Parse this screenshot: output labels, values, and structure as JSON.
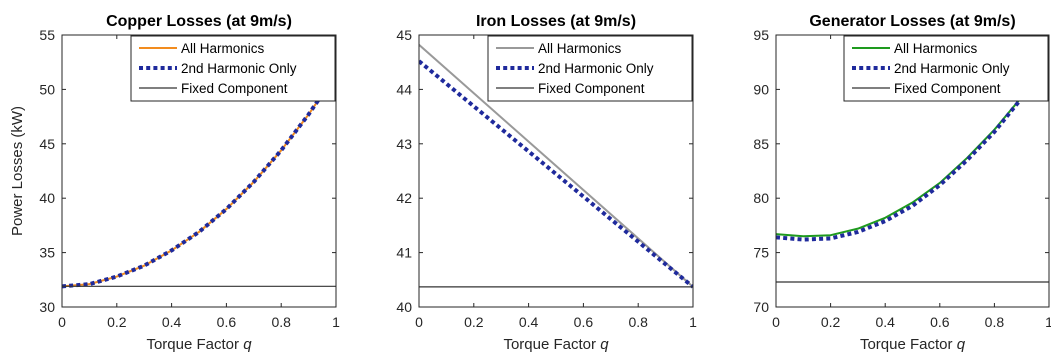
{
  "chart_data": [
    {
      "type": "line",
      "title": "Copper Losses (at 9m/s)",
      "xlabel": "Torque Factor",
      "xlabel_var": "q",
      "ylabel": "Power Losses (kW)",
      "xlim": [
        0,
        1
      ],
      "ylim": [
        30,
        55
      ],
      "xticks": [
        0,
        0.2,
        0.4,
        0.6,
        0.8,
        1
      ],
      "xtick_labels": [
        "0",
        "0.2",
        "0.4",
        "0.6",
        "0.8",
        "1"
      ],
      "yticks": [
        30,
        35,
        40,
        45,
        50,
        55
      ],
      "ytick_labels": [
        "30",
        "35",
        "40",
        "45",
        "50",
        "55"
      ],
      "grid": false,
      "legend_position": "top-right",
      "series": [
        {
          "name": "All Harmonics",
          "color": "#F28C1E",
          "style": "solid",
          "x": [
            0,
            0.1,
            0.2,
            0.3,
            0.4,
            0.5,
            0.6,
            0.7,
            0.8,
            0.9,
            1.0
          ],
          "y": [
            31.9,
            32.1,
            32.8,
            33.8,
            35.2,
            36.9,
            39.0,
            41.5,
            44.4,
            47.7,
            51.4
          ]
        },
        {
          "name": "2nd Harmonic Only",
          "color": "#1F2A9C",
          "style": "dotted",
          "x": [
            0,
            0.1,
            0.2,
            0.3,
            0.4,
            0.5,
            0.6,
            0.7,
            0.8,
            0.9,
            1.0
          ],
          "y": [
            31.9,
            32.1,
            32.8,
            33.8,
            35.2,
            36.9,
            39.0,
            41.5,
            44.4,
            47.7,
            51.4
          ]
        },
        {
          "name": "Fixed Component",
          "color": "#333333",
          "style": "thin",
          "x": [
            0,
            1
          ],
          "y": [
            31.9,
            31.9
          ]
        }
      ]
    },
    {
      "type": "line",
      "title": "Iron Losses (at 9m/s)",
      "xlabel": "Torque Factor",
      "xlabel_var": "q",
      "ylabel": "",
      "xlim": [
        0,
        1
      ],
      "ylim": [
        40,
        45
      ],
      "xticks": [
        0,
        0.2,
        0.4,
        0.6,
        0.8,
        1
      ],
      "xtick_labels": [
        "0",
        "0.2",
        "0.4",
        "0.6",
        "0.8",
        "1"
      ],
      "yticks": [
        40,
        41,
        42,
        43,
        44,
        45
      ],
      "ytick_labels": [
        "40",
        "41",
        "42",
        "43",
        "44",
        "45"
      ],
      "grid": false,
      "legend_position": "top-right",
      "series": [
        {
          "name": "All Harmonics",
          "color": "#999999",
          "style": "solid",
          "x": [
            0,
            1
          ],
          "y": [
            44.82,
            40.37
          ]
        },
        {
          "name": "2nd Harmonic Only",
          "color": "#1F2A9C",
          "style": "dotted",
          "x": [
            0,
            1
          ],
          "y": [
            44.52,
            40.37
          ]
        },
        {
          "name": "Fixed Component",
          "color": "#333333",
          "style": "thin",
          "x": [
            0,
            1
          ],
          "y": [
            40.37,
            40.37
          ]
        }
      ]
    },
    {
      "type": "line",
      "title": "Generator Losses (at 9m/s)",
      "xlabel": "Torque Factor",
      "xlabel_var": "q",
      "ylabel": "",
      "xlim": [
        0,
        1
      ],
      "ylim": [
        70,
        95
      ],
      "xticks": [
        0,
        0.2,
        0.4,
        0.6,
        0.8,
        1
      ],
      "xtick_labels": [
        "0",
        "0.2",
        "0.4",
        "0.6",
        "0.8",
        "1"
      ],
      "yticks": [
        70,
        75,
        80,
        85,
        90,
        95
      ],
      "ytick_labels": [
        "70",
        "75",
        "80",
        "85",
        "90",
        "95"
      ],
      "grid": false,
      "legend_position": "top-right",
      "series": [
        {
          "name": "All Harmonics",
          "color": "#1E9A1E",
          "style": "solid",
          "x": [
            0,
            0.1,
            0.2,
            0.3,
            0.4,
            0.5,
            0.6,
            0.7,
            0.8,
            0.9,
            1.0
          ],
          "y": [
            76.7,
            76.5,
            76.6,
            77.2,
            78.2,
            79.6,
            81.4,
            83.7,
            86.3,
            89.3,
            92.0
          ]
        },
        {
          "name": "2nd Harmonic Only",
          "color": "#1F2A9C",
          "style": "dotted",
          "x": [
            0,
            0.1,
            0.2,
            0.3,
            0.4,
            0.5,
            0.6,
            0.7,
            0.8,
            0.9,
            1.0
          ],
          "y": [
            76.4,
            76.2,
            76.3,
            76.9,
            77.9,
            79.3,
            81.2,
            83.5,
            86.1,
            89.2,
            91.8
          ]
        },
        {
          "name": "Fixed Component",
          "color": "#333333",
          "style": "thin",
          "x": [
            0,
            1
          ],
          "y": [
            72.3,
            72.3
          ]
        }
      ]
    }
  ]
}
